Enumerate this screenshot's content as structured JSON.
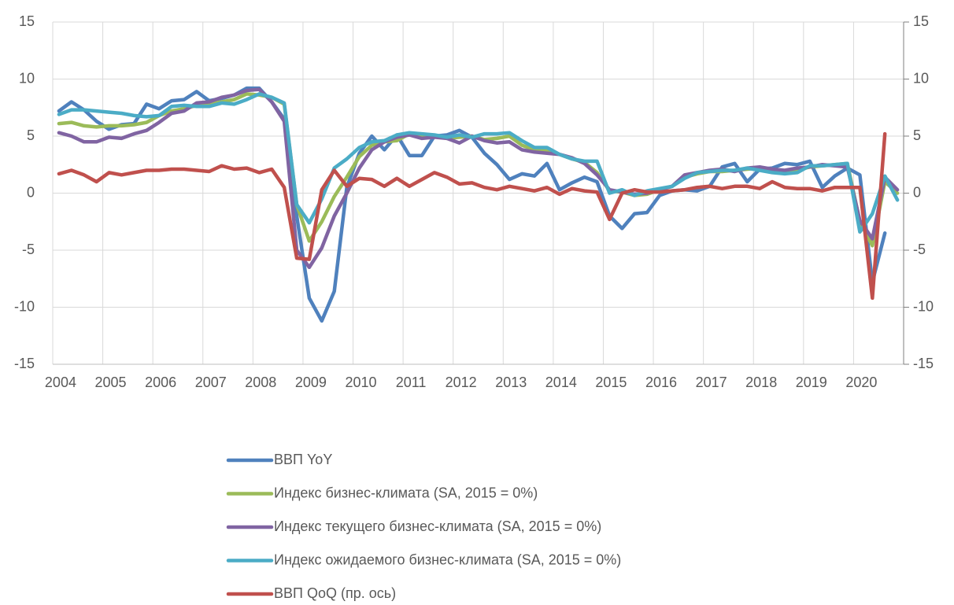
{
  "chart_data": {
    "type": "line",
    "categories": [
      "2004",
      null,
      null,
      null,
      "2005",
      null,
      null,
      null,
      "2006",
      null,
      null,
      null,
      "2007",
      null,
      null,
      null,
      "2008",
      null,
      null,
      null,
      "2009",
      null,
      null,
      null,
      "2010",
      null,
      null,
      null,
      "2011",
      null,
      null,
      null,
      "2012",
      null,
      null,
      null,
      "2013",
      null,
      null,
      null,
      "2014",
      null,
      null,
      null,
      "2015",
      null,
      null,
      null,
      "2016",
      null,
      null,
      null,
      "2017",
      null,
      null,
      null,
      "2018",
      null,
      null,
      null,
      "2019",
      null,
      null,
      null,
      "2020",
      null,
      null,
      null
    ],
    "ylim": [
      -15,
      15
    ],
    "yticks": [
      -15,
      -10,
      -5,
      0,
      5,
      10,
      15
    ],
    "y2lim": [
      -15,
      15
    ],
    "y2ticks": [
      -15,
      -10,
      -5,
      0,
      5,
      10,
      15
    ],
    "grid": true,
    "series": [
      {
        "name": "ВВП YoY",
        "color": "#4f81bd",
        "values": [
          7.2,
          8.0,
          7.3,
          6.3,
          5.6,
          6.0,
          6.1,
          7.8,
          7.4,
          8.1,
          8.2,
          8.9,
          8.1,
          8.3,
          8.6,
          9.2,
          9.2,
          8.0,
          6.5,
          -2.0,
          -9.2,
          -11.2,
          -8.6,
          0.5,
          3.5,
          5.0,
          3.8,
          5.1,
          3.3,
          3.3,
          5.0,
          5.1,
          5.5,
          4.9,
          3.5,
          2.5,
          1.2,
          1.7,
          1.5,
          2.6,
          0.3,
          0.9,
          1.4,
          1.0,
          -2.0,
          -3.1,
          -1.8,
          -1.7,
          -0.2,
          0.2,
          0.3,
          0.2,
          0.6,
          2.3,
          2.6,
          1.0,
          2.1,
          2.2,
          2.6,
          2.5,
          2.8,
          0.5,
          1.5,
          2.2,
          1.6,
          -7.8,
          -3.5,
          null
        ]
      },
      {
        "name": "Индекс бизнес-климата (SA, 2015 = 0%)",
        "color": "#9bbb59",
        "values": [
          6.1,
          6.2,
          5.9,
          5.8,
          5.9,
          5.9,
          6.0,
          6.2,
          6.8,
          7.2,
          7.4,
          7.7,
          7.8,
          8.0,
          8.2,
          8.7,
          8.6,
          8.4,
          7.8,
          -1.0,
          -4.2,
          -2.5,
          -0.3,
          1.4,
          3.2,
          4.2,
          4.5,
          4.6,
          5.2,
          5.1,
          5.0,
          4.8,
          4.9,
          5.0,
          4.7,
          4.8,
          5.0,
          4.2,
          3.8,
          3.8,
          3.4,
          3.0,
          2.7,
          1.8,
          0.2,
          0.1,
          -0.2,
          -0.1,
          0.3,
          0.6,
          1.4,
          1.7,
          1.9,
          1.9,
          2.0,
          2.1,
          2.2,
          2.0,
          1.9,
          2.0,
          2.3,
          2.4,
          2.5,
          2.6,
          -2.5,
          -4.6,
          1.0,
          0.0
        ]
      },
      {
        "name": "Индекс текущего бизнес-климата (SA, 2015 = 0%)",
        "color": "#8064a2",
        "values": [
          5.3,
          5.0,
          4.5,
          4.5,
          4.9,
          4.8,
          5.2,
          5.5,
          6.2,
          7.0,
          7.2,
          7.9,
          8.0,
          8.4,
          8.6,
          9.0,
          9.1,
          8.0,
          6.3,
          -5.0,
          -6.5,
          -4.8,
          -2.0,
          0.0,
          2.2,
          3.8,
          4.5,
          4.9,
          5.1,
          4.8,
          4.9,
          4.8,
          4.4,
          5.0,
          4.6,
          4.4,
          4.5,
          3.8,
          3.6,
          3.5,
          3.4,
          3.1,
          2.6,
          1.6,
          0.3,
          0.1,
          -0.1,
          0.0,
          0.3,
          0.6,
          1.6,
          1.8,
          2.0,
          2.1,
          1.9,
          2.2,
          2.3,
          2.1,
          2.0,
          2.2,
          2.3,
          2.5,
          2.4,
          2.3,
          -2.4,
          -4.0,
          1.4,
          0.3
        ]
      },
      {
        "name": "Индекс ожидаемого бизнес-климата (SA, 2015 = 0%)",
        "color": "#4bacc6",
        "values": [
          6.9,
          7.3,
          7.3,
          7.2,
          7.1,
          7.0,
          6.8,
          6.7,
          6.8,
          7.6,
          7.7,
          7.6,
          7.6,
          7.9,
          7.8,
          8.2,
          8.7,
          8.4,
          7.9,
          -1.0,
          -2.6,
          -0.5,
          2.2,
          3.0,
          4.0,
          4.5,
          4.6,
          5.1,
          5.3,
          5.2,
          5.1,
          4.9,
          5.1,
          4.9,
          5.2,
          5.2,
          5.3,
          4.6,
          4.0,
          4.0,
          3.4,
          3.0,
          2.8,
          2.8,
          0.0,
          0.3,
          -0.2,
          0.2,
          0.4,
          0.6,
          1.3,
          1.8,
          1.9,
          2.0,
          2.0,
          2.2,
          2.0,
          1.8,
          1.7,
          1.8,
          2.4,
          2.4,
          2.5,
          2.6,
          -3.4,
          -1.8,
          1.5,
          -0.6
        ]
      },
      {
        "name": "ВВП QoQ (пр. ось)",
        "color": "#c0504d",
        "axis": "y2",
        "values": [
          1.7,
          2.0,
          1.6,
          1.0,
          1.8,
          1.6,
          1.8,
          2.0,
          2.0,
          2.1,
          2.1,
          2.0,
          1.9,
          2.4,
          2.1,
          2.2,
          1.8,
          2.1,
          0.5,
          -5.7,
          -5.8,
          0.3,
          2.0,
          0.6,
          1.3,
          1.2,
          0.6,
          1.3,
          0.6,
          1.2,
          1.8,
          1.4,
          0.8,
          0.9,
          0.5,
          0.3,
          0.6,
          0.4,
          0.2,
          0.5,
          -0.1,
          0.4,
          0.2,
          0.1,
          -2.3,
          0.0,
          0.3,
          0.1,
          0.1,
          0.2,
          0.3,
          0.5,
          0.6,
          0.4,
          0.6,
          0.6,
          0.4,
          1.0,
          0.5,
          0.4,
          0.4,
          0.2,
          0.5,
          0.5,
          0.5,
          -9.2,
          5.2,
          null
        ]
      }
    ]
  }
}
